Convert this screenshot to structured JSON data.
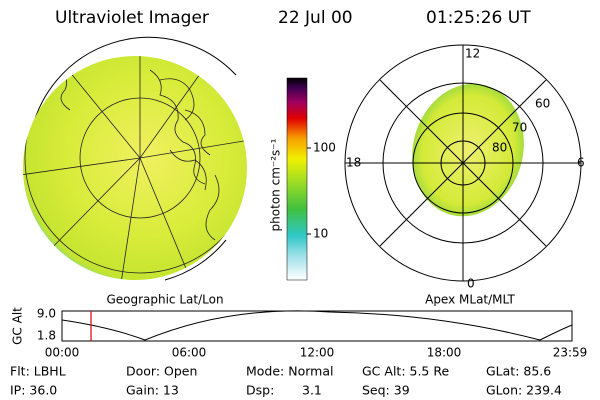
{
  "header": {
    "title": "Ultraviolet Imager",
    "date": "22 Jul 00",
    "time": "01:25:26 UT"
  },
  "colorbar": {
    "label": "photon cm⁻²s⁻¹",
    "ticks": [
      "100",
      "10"
    ]
  },
  "left_panel": {
    "caption": "Geographic Lat/Lon"
  },
  "right_panel": {
    "caption": "Apex MLat/MLT",
    "mlt_labels": [
      "12",
      "18",
      "6",
      "0"
    ],
    "mlat_labels": [
      "60",
      "70",
      "80"
    ]
  },
  "altitude_plot": {
    "ylabel": "GC Alt",
    "yticks": [
      "9.0",
      "1.8"
    ],
    "xticks": [
      "00:00",
      "06:00",
      "12:00",
      "18:00",
      "23:59"
    ]
  },
  "footer": {
    "rows": [
      [
        "Flt: LBHL",
        "Door: Open",
        "Mode: Normal",
        "GC Alt: 5.5 Re",
        "GLat: 85.6"
      ],
      [
        "IP: 36.0",
        "Gain: 13",
        "Dsp:",
        "3.1",
        "Seq: 39",
        "GLon: 239.4"
      ]
    ]
  }
}
